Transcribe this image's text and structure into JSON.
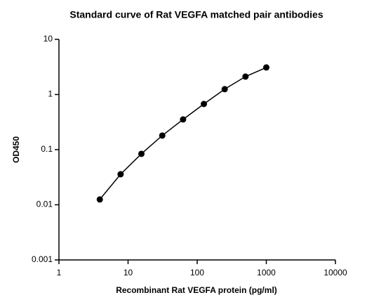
{
  "chart_data": {
    "type": "scatter",
    "title": "Standard curve of Rat VEGFA matched pair antibodies",
    "x_label": "Recombinant Rat VEGFA protein (pg/ml)",
    "y_label": "OD450",
    "x": [
      3.9,
      7.8,
      15.6,
      31.25,
      62.5,
      125,
      250,
      500,
      1000
    ],
    "values": [
      0.0125,
      0.0358,
      0.084,
      0.18,
      0.353,
      0.673,
      1.25,
      2.11,
      3.09
    ],
    "color": "#000000",
    "line": true,
    "xlog": true,
    "ylog": true,
    "xlim": [
      1,
      10000
    ],
    "xticks": [
      1,
      10,
      100,
      1000,
      10000
    ],
    "ylim": [
      0.001,
      10
    ],
    "yticks": [
      0.001,
      0.01,
      0.1,
      1,
      10
    ]
  }
}
